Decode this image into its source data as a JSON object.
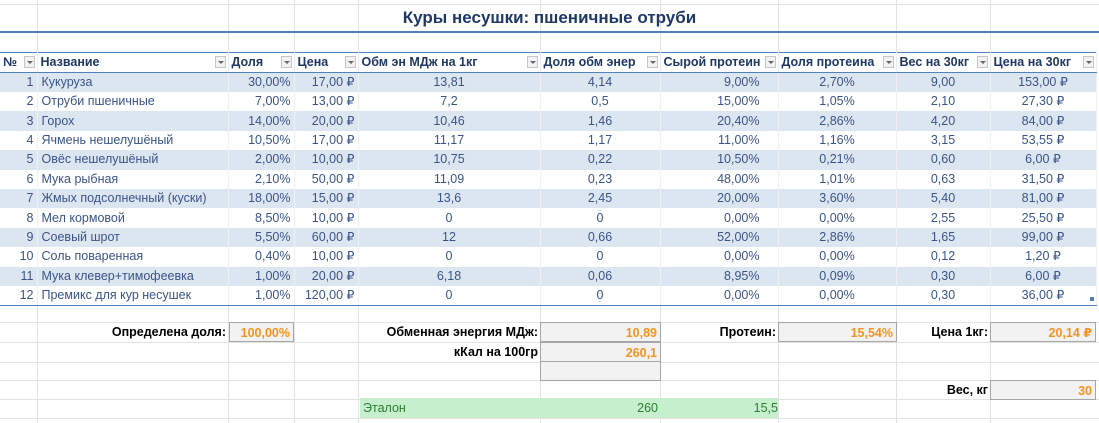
{
  "title": "Куры несушки: пшеничные отруби",
  "table": {
    "columns": [
      "№",
      "Название",
      "Доля",
      "Цена",
      "Обм эн МДж на 1кг",
      "Доля обм энер",
      "Сырой протеин",
      "Доля протеина",
      "Вес на 30кг",
      "Цена на 30кг"
    ],
    "rows": [
      [
        "1",
        "Кукуруза",
        "30,00%",
        "17,00 ₽",
        "13,81",
        "4,14",
        "9,00%",
        "2,70%",
        "9,00",
        "153,00 ₽"
      ],
      [
        "2",
        "Отруби пшеничные",
        "7,00%",
        "13,00 ₽",
        "7,2",
        "0,5",
        "15,00%",
        "1,05%",
        "2,10",
        "27,30 ₽"
      ],
      [
        "3",
        "Горох",
        "14,00%",
        "20,00 ₽",
        "10,46",
        "1,46",
        "20,40%",
        "2,86%",
        "4,20",
        "84,00 ₽"
      ],
      [
        "4",
        "Ячмень нешелушёный",
        "10,50%",
        "17,00 ₽",
        "11,17",
        "1,17",
        "11,00%",
        "1,16%",
        "3,15",
        "53,55 ₽"
      ],
      [
        "5",
        "Овёс нешелушёный",
        "2,00%",
        "10,00 ₽",
        "10,75",
        "0,22",
        "10,50%",
        "0,21%",
        "0,60",
        "6,00 ₽"
      ],
      [
        "6",
        "Мука рыбная",
        "2,10%",
        "50,00 ₽",
        "11,09",
        "0,23",
        "48,00%",
        "1,01%",
        "0,63",
        "31,50 ₽"
      ],
      [
        "7",
        "Жмых подсолнечный (куски)",
        "18,00%",
        "15,00 ₽",
        "13,6",
        "2,45",
        "20,00%",
        "3,60%",
        "5,40",
        "81,00 ₽"
      ],
      [
        "8",
        "Мел кормовой",
        "8,50%",
        "10,00 ₽",
        "0",
        "0",
        "0,00%",
        "0,00%",
        "2,55",
        "25,50 ₽"
      ],
      [
        "9",
        "Соевый шрот",
        "5,50%",
        "60,00 ₽",
        "12",
        "0,66",
        "52,00%",
        "2,86%",
        "1,65",
        "99,00 ₽"
      ],
      [
        "10",
        "Соль поваренная",
        "0,40%",
        "10,00 ₽",
        "0",
        "0",
        "0,00%",
        "0,00%",
        "0,12",
        "1,20 ₽"
      ],
      [
        "11",
        "Мука клевер+тимофеевка",
        "1,00%",
        "20,00 ₽",
        "6,18",
        "0,06",
        "8,95%",
        "0,09%",
        "0,30",
        "6,00 ₽"
      ],
      [
        "12",
        "Премикс для кур несушек",
        "1,00%",
        "120,00 ₽",
        "0",
        "0",
        "0,00%",
        "0,00%",
        "0,30",
        "36,00 ₽"
      ]
    ]
  },
  "summary": {
    "share_label": "Определена доля:",
    "share_value": "100,00%",
    "energy_label": "Обменная энергия МДж:",
    "energy_value": "10,89",
    "kcal_label": "кКал на 100гр",
    "kcal_value": "260,1",
    "empty_value": "",
    "protein_label": "Протеин:",
    "protein_value": "15,54%",
    "price_label": "Цена 1кг:",
    "price_value": "20,14 ₽",
    "weight_label": "Вес, кг",
    "weight_value": "30",
    "etalon_label": "Эталон",
    "etalon_energy": "260",
    "etalon_protein": "15,5"
  },
  "colors": {
    "accent": "#4f81bd",
    "band": "#dce6f1",
    "result": "#f7941d",
    "etalon_bg": "#c6efce",
    "etalon_text": "#2e7d32"
  }
}
